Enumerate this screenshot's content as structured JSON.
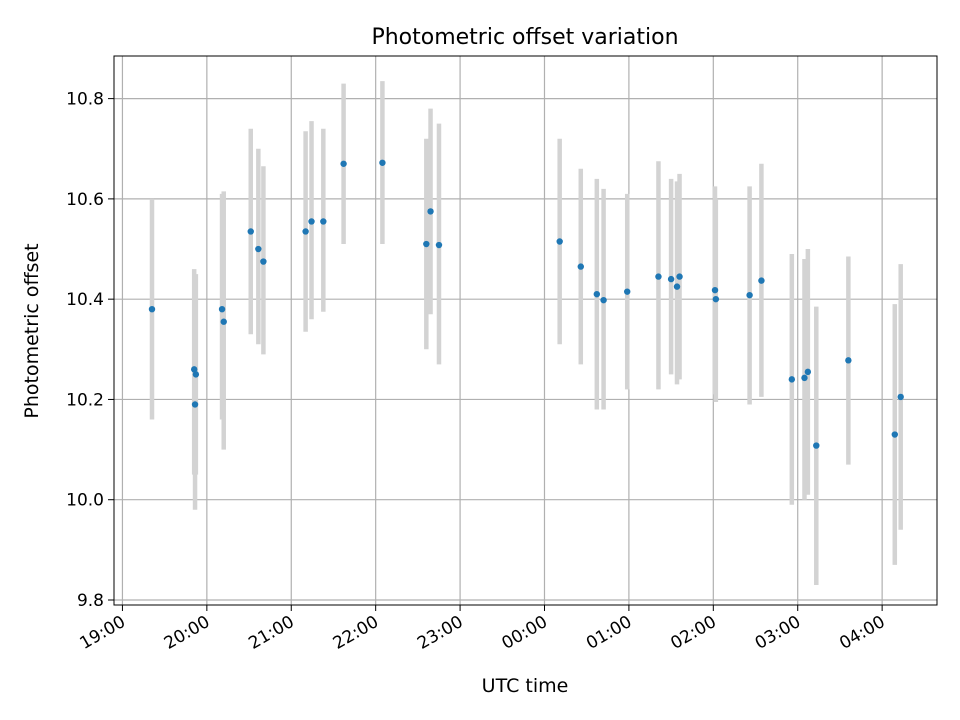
{
  "chart_data": {
    "type": "scatter",
    "title": "Photometric offset variation",
    "xlabel": "UTC time",
    "ylabel": "Photometric offset",
    "xlim_hours": [
      18.9,
      28.65
    ],
    "ylim": [
      9.79,
      10.885
    ],
    "grid": true,
    "legend": "none",
    "x_ticks": [
      {
        "hour": 19,
        "label": "19:00"
      },
      {
        "hour": 20,
        "label": "20:00"
      },
      {
        "hour": 21,
        "label": "21:00"
      },
      {
        "hour": 22,
        "label": "22:00"
      },
      {
        "hour": 23,
        "label": "23:00"
      },
      {
        "hour": 24,
        "label": "00:00"
      },
      {
        "hour": 25,
        "label": "01:00"
      },
      {
        "hour": 26,
        "label": "02:00"
      },
      {
        "hour": 27,
        "label": "03:00"
      },
      {
        "hour": 28,
        "label": "04:00"
      }
    ],
    "y_ticks": [
      {
        "value": 9.8,
        "label": "9.8"
      },
      {
        "value": 10.0,
        "label": "10.0"
      },
      {
        "value": 10.2,
        "label": "10.2"
      },
      {
        "value": 10.4,
        "label": "10.4"
      },
      {
        "value": 10.6,
        "label": "10.6"
      },
      {
        "value": 10.8,
        "label": "10.8"
      }
    ],
    "colors": {
      "point": "#1f77b4",
      "errorbar": "#d3d3d3",
      "grid": "#b0b0b0",
      "axes": "#000000"
    },
    "points": [
      {
        "t": 19.35,
        "y": 10.38,
        "lo": 10.16,
        "hi": 10.6
      },
      {
        "t": 19.85,
        "y": 10.26,
        "lo": 10.05,
        "hi": 10.46
      },
      {
        "t": 19.86,
        "y": 10.19,
        "lo": 9.98,
        "hi": 10.4
      },
      {
        "t": 19.87,
        "y": 10.25,
        "lo": 10.05,
        "hi": 10.45
      },
      {
        "t": 20.18,
        "y": 10.38,
        "lo": 10.16,
        "hi": 10.61
      },
      {
        "t": 20.2,
        "y": 10.355,
        "lo": 10.1,
        "hi": 10.615
      },
      {
        "t": 20.52,
        "y": 10.535,
        "lo": 10.33,
        "hi": 10.74
      },
      {
        "t": 20.61,
        "y": 10.5,
        "lo": 10.31,
        "hi": 10.7
      },
      {
        "t": 20.67,
        "y": 10.475,
        "lo": 10.29,
        "hi": 10.665
      },
      {
        "t": 21.17,
        "y": 10.535,
        "lo": 10.335,
        "hi": 10.735
      },
      {
        "t": 21.24,
        "y": 10.555,
        "lo": 10.36,
        "hi": 10.755
      },
      {
        "t": 21.38,
        "y": 10.555,
        "lo": 10.375,
        "hi": 10.74
      },
      {
        "t": 21.62,
        "y": 10.67,
        "lo": 10.51,
        "hi": 10.83
      },
      {
        "t": 22.08,
        "y": 10.672,
        "lo": 10.51,
        "hi": 10.835
      },
      {
        "t": 22.6,
        "y": 10.51,
        "lo": 10.3,
        "hi": 10.72
      },
      {
        "t": 22.65,
        "y": 10.575,
        "lo": 10.37,
        "hi": 10.78
      },
      {
        "t": 22.75,
        "y": 10.508,
        "lo": 10.27,
        "hi": 10.75
      },
      {
        "t": 24.18,
        "y": 10.515,
        "lo": 10.31,
        "hi": 10.72
      },
      {
        "t": 24.43,
        "y": 10.465,
        "lo": 10.27,
        "hi": 10.66
      },
      {
        "t": 24.62,
        "y": 10.41,
        "lo": 10.18,
        "hi": 10.64
      },
      {
        "t": 24.7,
        "y": 10.398,
        "lo": 10.18,
        "hi": 10.62
      },
      {
        "t": 24.98,
        "y": 10.415,
        "lo": 10.22,
        "hi": 10.61
      },
      {
        "t": 25.35,
        "y": 10.445,
        "lo": 10.22,
        "hi": 10.675
      },
      {
        "t": 25.5,
        "y": 10.44,
        "lo": 10.25,
        "hi": 10.64
      },
      {
        "t": 25.57,
        "y": 10.425,
        "lo": 10.23,
        "hi": 10.635
      },
      {
        "t": 25.6,
        "y": 10.445,
        "lo": 10.24,
        "hi": 10.65
      },
      {
        "t": 26.02,
        "y": 10.418,
        "lo": 10.21,
        "hi": 10.625
      },
      {
        "t": 26.03,
        "y": 10.4,
        "lo": 10.195,
        "hi": 10.6
      },
      {
        "t": 26.43,
        "y": 10.408,
        "lo": 10.19,
        "hi": 10.625
      },
      {
        "t": 26.57,
        "y": 10.437,
        "lo": 10.205,
        "hi": 10.67
      },
      {
        "t": 26.93,
        "y": 10.24,
        "lo": 9.99,
        "hi": 10.49
      },
      {
        "t": 27.08,
        "y": 10.243,
        "lo": 10.0,
        "hi": 10.48
      },
      {
        "t": 27.12,
        "y": 10.255,
        "lo": 10.01,
        "hi": 10.5
      },
      {
        "t": 27.22,
        "y": 10.108,
        "lo": 9.83,
        "hi": 10.385
      },
      {
        "t": 27.6,
        "y": 10.278,
        "lo": 10.07,
        "hi": 10.485
      },
      {
        "t": 28.15,
        "y": 10.13,
        "lo": 9.87,
        "hi": 10.39
      },
      {
        "t": 28.22,
        "y": 10.205,
        "lo": 9.94,
        "hi": 10.47
      }
    ]
  }
}
